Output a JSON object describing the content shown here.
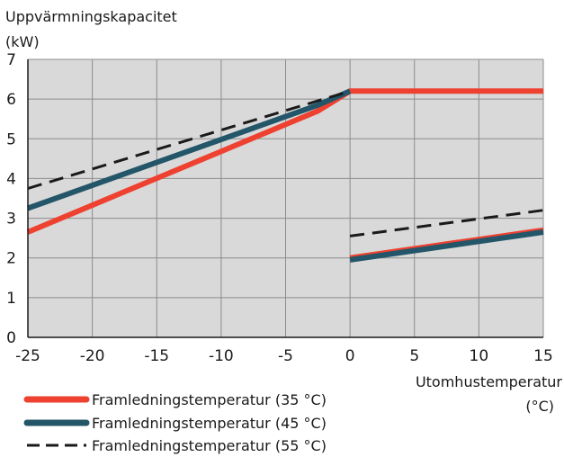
{
  "chart_data": {
    "type": "line",
    "ylabel_line1": "Uppvärmningskapacitet",
    "ylabel_line2": "(kW)",
    "xlabel_line1": "Utomhustemperatur",
    "xlabel_line2": "(°C)",
    "xlim": [
      -25,
      15
    ],
    "ylim": [
      0,
      7
    ],
    "x_ticks": [
      -25,
      -20,
      -15,
      -10,
      -5,
      0,
      5,
      10,
      15
    ],
    "y_ticks": [
      0,
      1,
      2,
      3,
      4,
      5,
      6,
      7
    ],
    "x_tick_labels": [
      "-25",
      "-20",
      "-15",
      "-10",
      "-5",
      "0",
      "5",
      "10",
      "15"
    ],
    "y_tick_labels": [
      "0",
      "1",
      "2",
      "3",
      "4",
      "5",
      "6",
      "7"
    ],
    "grid": true,
    "plot_background": "#d9d9d9",
    "legend_position": "bottom-left",
    "series": [
      {
        "name": "Framledningstemperatur (35 °C)",
        "color": "#ee4130",
        "style": "solid-thick",
        "segments": [
          [
            [
              -25,
              2.65
            ],
            [
              -2.5,
              5.7
            ],
            [
              0,
              6.2
            ],
            [
              15,
              6.2
            ]
          ],
          [
            [
              0,
              2.0
            ],
            [
              15,
              2.7
            ]
          ]
        ]
      },
      {
        "name": "Framledningstemperatur (45 °C)",
        "color": "#235669",
        "style": "solid-thick",
        "segments": [
          [
            [
              -25,
              3.25
            ],
            [
              -2.5,
              5.85
            ],
            [
              0,
              6.2
            ]
          ],
          [
            [
              0,
              1.95
            ],
            [
              15,
              2.65
            ]
          ]
        ]
      },
      {
        "name": "Framledningstemperatur (55 °C)",
        "color": "#1a1a1a",
        "style": "dashed",
        "segments": [
          [
            [
              -25,
              3.75
            ],
            [
              0,
              6.2
            ]
          ],
          [
            [
              0,
              2.55
            ],
            [
              15,
              3.2
            ]
          ]
        ]
      }
    ]
  }
}
